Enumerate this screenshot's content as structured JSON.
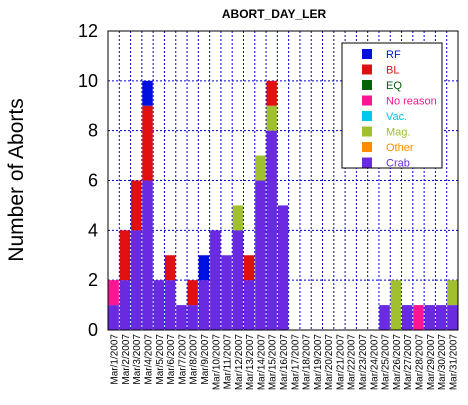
{
  "chart_data": {
    "type": "bar",
    "stacked": true,
    "title": "ABORT_DAY_LER",
    "xlabel": "",
    "ylabel": "Number of Aborts",
    "ylim": [
      0,
      12
    ],
    "yticks": [
      0,
      2,
      4,
      6,
      8,
      10,
      12
    ],
    "grid": true,
    "legend_position": "top-right",
    "categories": [
      "Mar/1/2007",
      "Mar/2/2007",
      "Mar/3/2007",
      "Mar/4/2007",
      "Mar/5/2007",
      "Mar/6/2007",
      "Mar/7/2007",
      "Mar/8/2007",
      "Mar/9/2007",
      "Mar/10/2007",
      "Mar/11/2007",
      "Mar/12/2007",
      "Mar/13/2007",
      "Mar/14/2007",
      "Mar/15/2007",
      "Mar/16/2007",
      "Mar/17/2007",
      "Mar/18/2007",
      "Mar/19/2007",
      "Mar/20/2007",
      "Mar/21/2007",
      "Mar/22/2007",
      "Mar/23/2007",
      "Mar/24/2007",
      "Mar/25/2007",
      "Mar/26/2007",
      "Mar/27/2007",
      "Mar/28/2007",
      "Mar/29/2007",
      "Mar/30/2007",
      "Mar/31/2007"
    ],
    "series": [
      {
        "name": "Crab",
        "color": "#6a2be0",
        "values": [
          1,
          2,
          4,
          6,
          2,
          2,
          1,
          1,
          2,
          4,
          3,
          4,
          2,
          6,
          8,
          5,
          0,
          0,
          0,
          0,
          0,
          0,
          0,
          0,
          1,
          0,
          1,
          0,
          1,
          1,
          1
        ]
      },
      {
        "name": "Other",
        "color": "#ff8c00",
        "values": [
          0,
          0,
          0,
          0,
          0,
          0,
          0,
          0,
          0,
          0,
          0,
          0,
          0,
          0,
          0,
          0,
          0,
          0,
          0,
          0,
          0,
          0,
          0,
          0,
          0,
          0,
          0,
          0,
          0,
          0,
          0
        ]
      },
      {
        "name": "Mag.",
        "color": "#a0c030",
        "values": [
          0,
          0,
          0,
          0,
          0,
          0,
          0,
          0,
          0,
          0,
          0,
          1,
          0,
          1,
          1,
          0,
          0,
          0,
          0,
          0,
          0,
          0,
          0,
          0,
          0,
          2,
          0,
          0,
          0,
          0,
          1
        ]
      },
      {
        "name": "Vac.",
        "color": "#00c8e8",
        "values": [
          0,
          0,
          0,
          0,
          0,
          0,
          0,
          0,
          0,
          0,
          0,
          0,
          0,
          0,
          0,
          0,
          0,
          0,
          0,
          0,
          0,
          0,
          0,
          0,
          0,
          0,
          0,
          0,
          0,
          0,
          0
        ]
      },
      {
        "name": "No reason",
        "color": "#ff1493",
        "values": [
          1,
          0,
          0,
          0,
          0,
          0,
          0,
          0,
          0,
          0,
          0,
          0,
          0,
          0,
          0,
          0,
          0,
          0,
          0,
          0,
          0,
          0,
          0,
          0,
          0,
          0,
          0,
          1,
          0,
          0,
          0
        ]
      },
      {
        "name": "EQ",
        "color": "#006400",
        "values": [
          0,
          0,
          0,
          0,
          0,
          0,
          0,
          0,
          0,
          0,
          0,
          0,
          0,
          0,
          0,
          0,
          0,
          0,
          0,
          0,
          0,
          0,
          0,
          0,
          0,
          0,
          0,
          0,
          0,
          0,
          0
        ]
      },
      {
        "name": "BL",
        "color": "#e01010",
        "values": [
          0,
          2,
          2,
          3,
          0,
          1,
          0,
          1,
          0,
          0,
          0,
          0,
          1,
          0,
          1,
          0,
          0,
          0,
          0,
          0,
          0,
          0,
          0,
          0,
          0,
          0,
          0,
          0,
          0,
          0,
          0
        ]
      },
      {
        "name": "RF",
        "color": "#0010e0",
        "values": [
          0,
          0,
          0,
          1,
          0,
          0,
          0,
          0,
          1,
          0,
          0,
          0,
          0,
          0,
          0,
          0,
          0,
          0,
          0,
          0,
          0,
          0,
          0,
          0,
          0,
          0,
          0,
          0,
          0,
          0,
          0
        ]
      }
    ],
    "legend_order": [
      "RF",
      "BL",
      "EQ",
      "No reason",
      "Vac.",
      "Mag.",
      "Other",
      "Crab"
    ]
  }
}
